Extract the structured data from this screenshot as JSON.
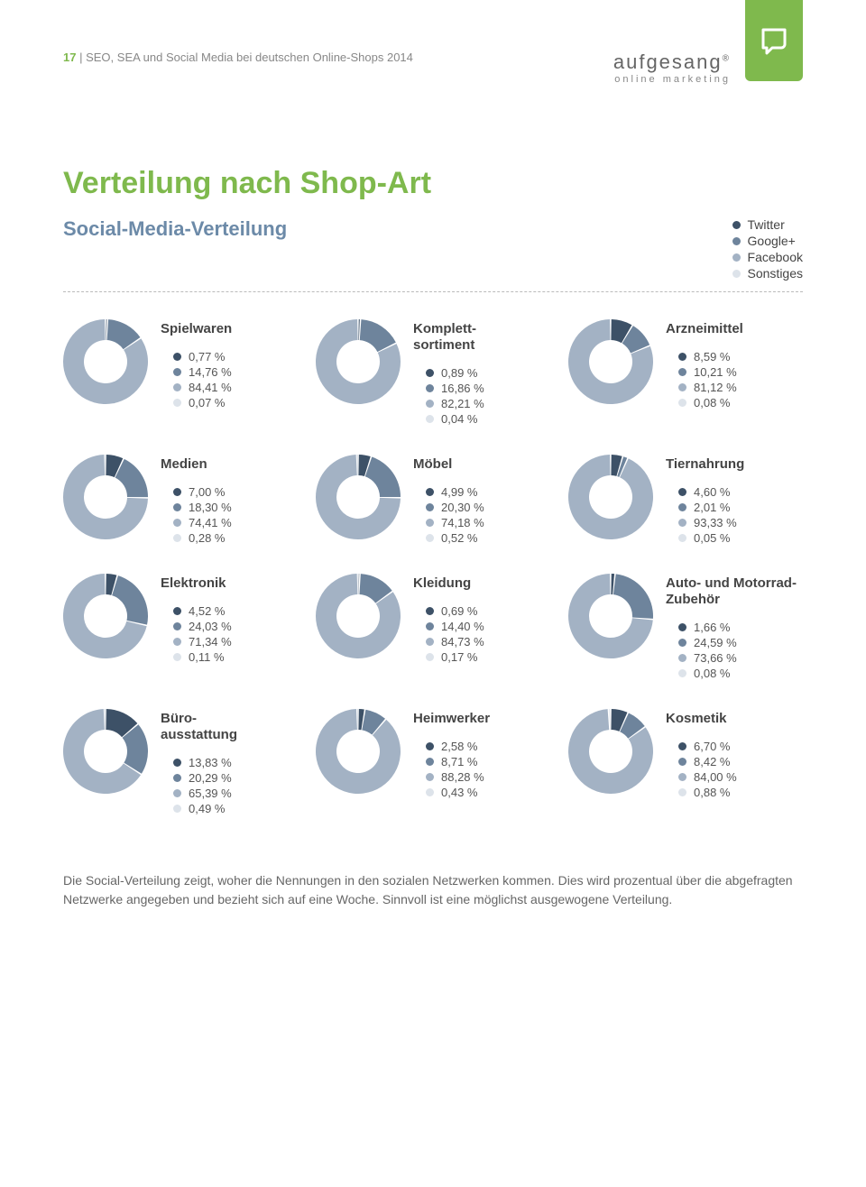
{
  "page_number": "17",
  "header_text": "SEO, SEA und Social Media bei deutschen Online-Shops 2014",
  "brand": {
    "name": "aufgesang",
    "reg": "®",
    "sub": "online marketing"
  },
  "title": "Verteilung nach Shop-Art",
  "subtitle": "Social-Media-Verteilung",
  "colors": {
    "twitter": "#3d5167",
    "google": "#6e849c",
    "facebook": "#a3b2c4",
    "other": "#dde3ea",
    "accent": "#7fb94d"
  },
  "legend": [
    {
      "key": "twitter",
      "label": "Twitter"
    },
    {
      "key": "google",
      "label": "Google+"
    },
    {
      "key": "facebook",
      "label": "Facebook"
    },
    {
      "key": "other",
      "label": "Sonstiges"
    }
  ],
  "charts": [
    {
      "title": "Spielwaren",
      "values": {
        "twitter": 0.77,
        "google": 14.76,
        "facebook": 84.41,
        "other": 0.07
      },
      "labels": {
        "twitter": "0,77 %",
        "google": "14,76 %",
        "facebook": "84,41 %",
        "other": "0,07 %"
      }
    },
    {
      "title": "Komplett-\nsortiment",
      "values": {
        "twitter": 0.89,
        "google": 16.86,
        "facebook": 82.21,
        "other": 0.04
      },
      "labels": {
        "twitter": "0,89 %",
        "google": "16,86 %",
        "facebook": "82,21 %",
        "other": "0,04 %"
      }
    },
    {
      "title": "Arzneimittel",
      "values": {
        "twitter": 8.59,
        "google": 10.21,
        "facebook": 81.12,
        "other": 0.08
      },
      "labels": {
        "twitter": "8,59 %",
        "google": "10,21 %",
        "facebook": "81,12 %",
        "other": "0,08 %"
      }
    },
    {
      "title": "Medien",
      "values": {
        "twitter": 7.0,
        "google": 18.3,
        "facebook": 74.41,
        "other": 0.28
      },
      "labels": {
        "twitter": "7,00 %",
        "google": "18,30 %",
        "facebook": "74,41 %",
        "other": "0,28 %"
      }
    },
    {
      "title": "Möbel",
      "values": {
        "twitter": 4.99,
        "google": 20.3,
        "facebook": 74.18,
        "other": 0.52
      },
      "labels": {
        "twitter": "4,99 %",
        "google": "20,30 %",
        "facebook": "74,18 %",
        "other": "0,52 %"
      }
    },
    {
      "title": "Tiernahrung",
      "values": {
        "twitter": 4.6,
        "google": 2.01,
        "facebook": 93.33,
        "other": 0.05
      },
      "labels": {
        "twitter": "4,60 %",
        "google": "2,01 %",
        "facebook": "93,33 %",
        "other": "0,05 %"
      }
    },
    {
      "title": "Elektronik",
      "values": {
        "twitter": 4.52,
        "google": 24.03,
        "facebook": 71.34,
        "other": 0.11
      },
      "labels": {
        "twitter": "4,52 %",
        "google": "24,03 %",
        "facebook": "71,34 %",
        "other": "0,11 %"
      }
    },
    {
      "title": "Kleidung",
      "values": {
        "twitter": 0.69,
        "google": 14.4,
        "facebook": 84.73,
        "other": 0.17
      },
      "labels": {
        "twitter": "0,69 %",
        "google": "14,40 %",
        "facebook": "84,73 %",
        "other": "0,17 %"
      }
    },
    {
      "title": "Auto- und Motorrad-Zubehör",
      "values": {
        "twitter": 1.66,
        "google": 24.59,
        "facebook": 73.66,
        "other": 0.08
      },
      "labels": {
        "twitter": "1,66 %",
        "google": "24,59 %",
        "facebook": "73,66 %",
        "other": "0,08 %"
      }
    },
    {
      "title": "Büro-\nausstattung",
      "values": {
        "twitter": 13.83,
        "google": 20.29,
        "facebook": 65.39,
        "other": 0.49
      },
      "labels": {
        "twitter": "13,83 %",
        "google": "20,29 %",
        "facebook": "65,39 %",
        "other": "0,49 %"
      }
    },
    {
      "title": "Heimwerker",
      "values": {
        "twitter": 2.58,
        "google": 8.71,
        "facebook": 88.28,
        "other": 0.43
      },
      "labels": {
        "twitter": "2,58 %",
        "google": "8,71 %",
        "facebook": "88,28 %",
        "other": "0,43 %"
      }
    },
    {
      "title": "Kosmetik",
      "values": {
        "twitter": 6.7,
        "google": 8.42,
        "facebook": 84.0,
        "other": 0.88
      },
      "labels": {
        "twitter": "6,70 %",
        "google": "8,42 %",
        "facebook": "84,00 %",
        "other": "0,88 %"
      }
    }
  ],
  "donut": {
    "outer_r": 47,
    "inner_r": 24,
    "gap_deg": 2,
    "start_angle": -90
  },
  "footer": "Die Social-Verteilung zeigt, woher die Nennungen in den sozialen Netzwerken kommen. Dies wird prozentual über die abgefragten Netzwerke angegeben und bezieht sich auf eine Woche. Sinnvoll ist eine möglichst ausgewogene Verteilung."
}
